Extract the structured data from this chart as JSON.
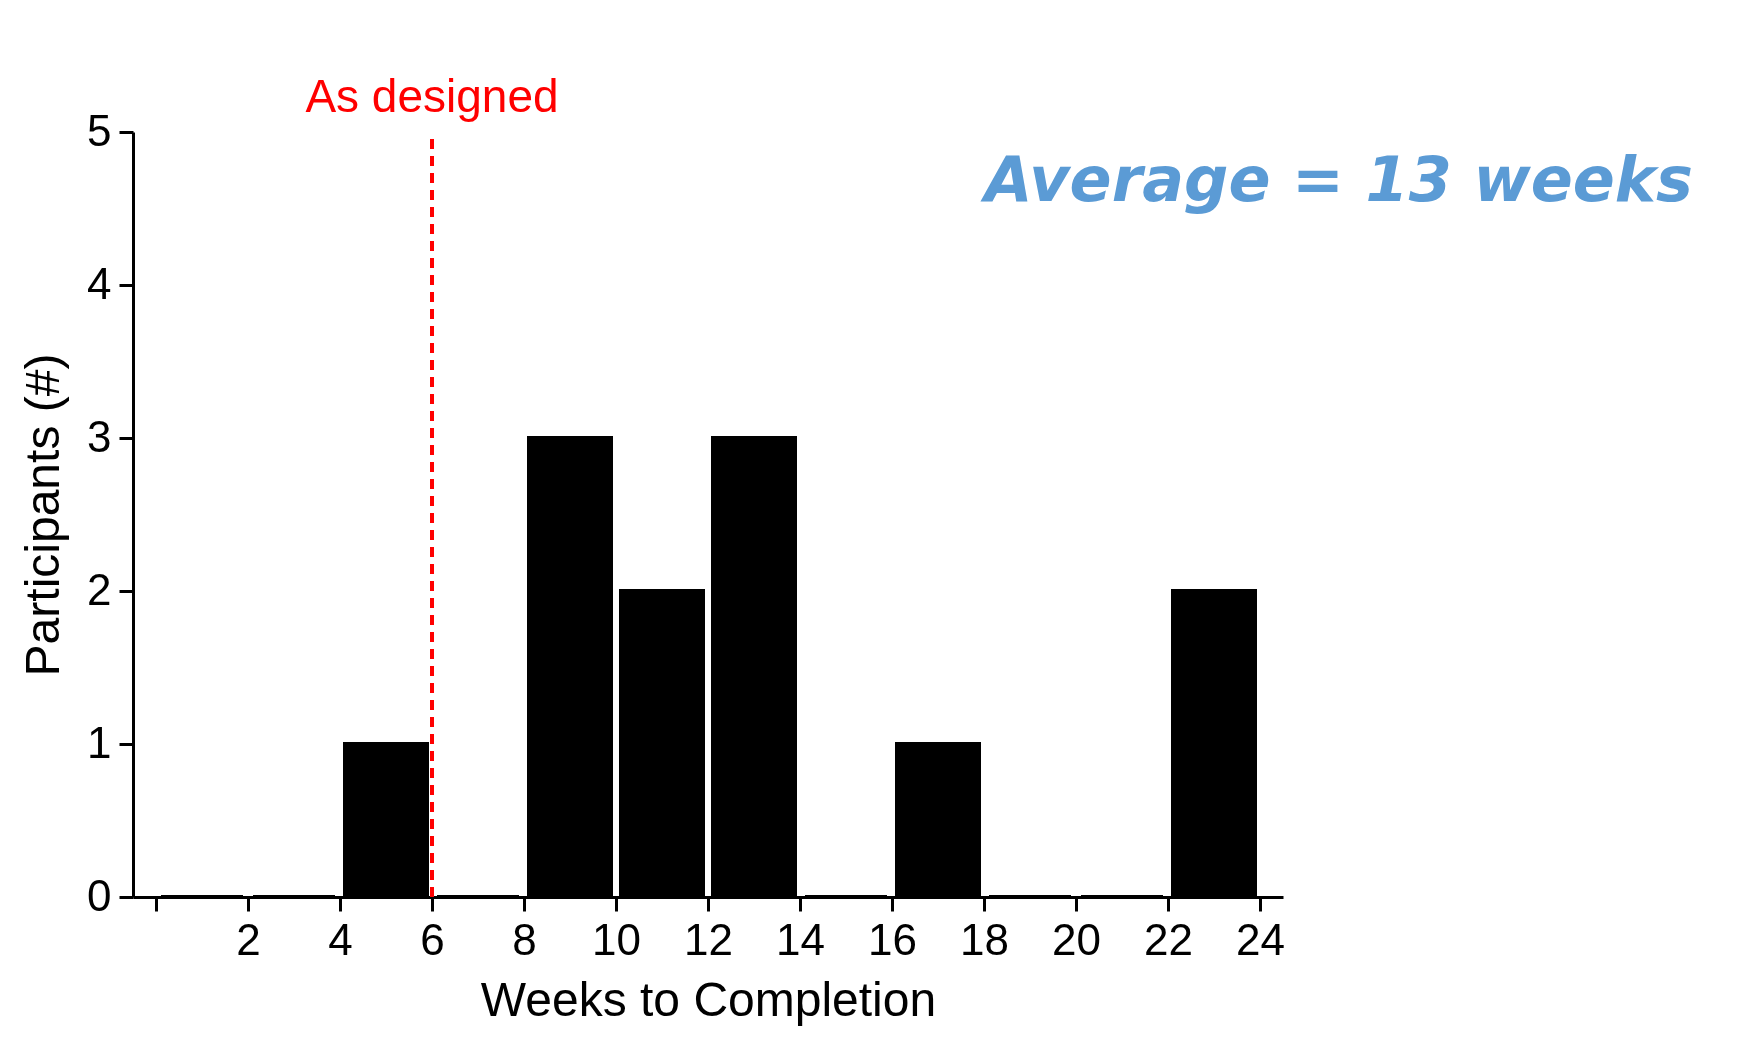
{
  "chart_data": {
    "type": "histogram",
    "xlabel": "Weeks to Completion",
    "ylabel": "Participants (#)",
    "bins": [
      0,
      2,
      4,
      6,
      8,
      10,
      12,
      14,
      16,
      18,
      20,
      22,
      24
    ],
    "values": [
      0,
      0,
      1,
      0,
      3,
      2,
      3,
      0,
      1,
      0,
      0,
      2
    ],
    "color": "#000000",
    "xlim": [
      -0.5,
      24.5
    ],
    "xticks": [
      {
        "value": 0,
        "label": null
      },
      2,
      4,
      6,
      8,
      10,
      12,
      14,
      16,
      18,
      20,
      22,
      24
    ],
    "ylim": [
      0,
      5
    ],
    "yticks": [
      0,
      1,
      2,
      3,
      4,
      5
    ],
    "ref_lines": [
      {
        "axis": "x",
        "value": 6,
        "label": "As designed",
        "color": "#ff0000",
        "line_style": "dashed"
      }
    ],
    "annotations": [
      "Average = 13 weeks"
    ],
    "grid": false
  }
}
